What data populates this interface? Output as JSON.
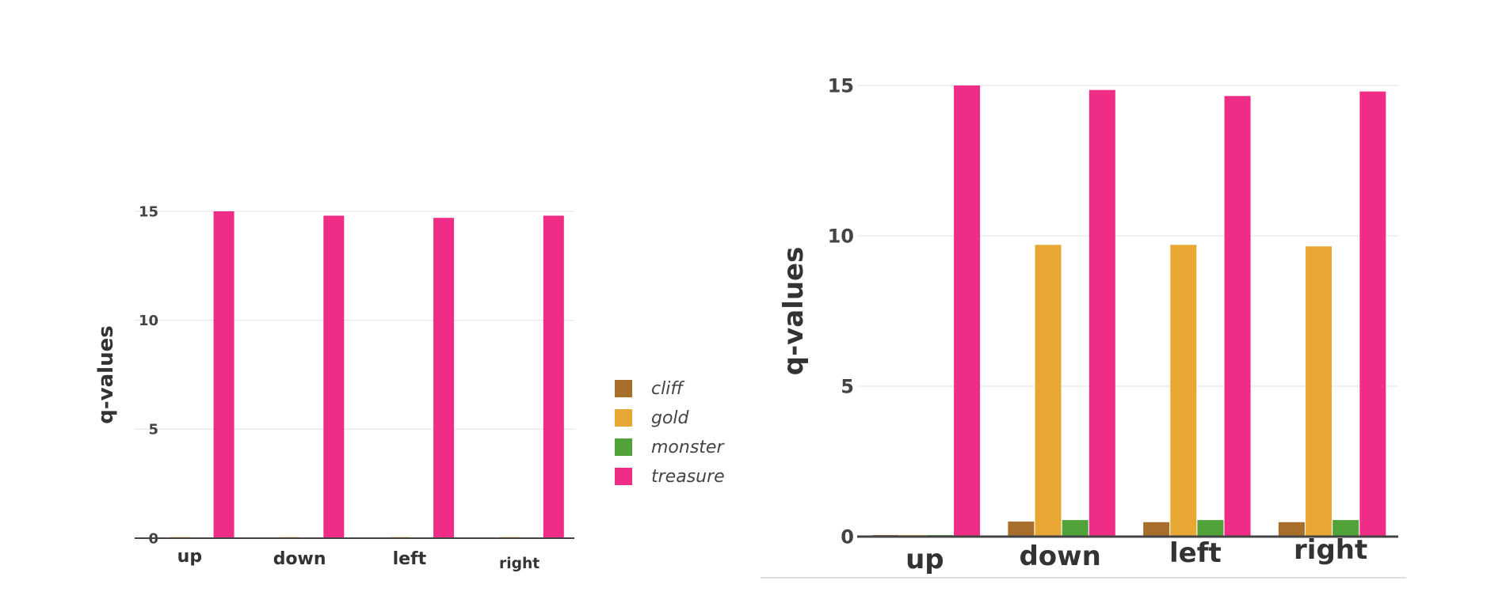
{
  "colors": {
    "cliff": "#A86E2C",
    "gold": "#E8A733",
    "monster": "#52A23A",
    "treasure": "#EF2C86",
    "grid": "#e6e6e6",
    "axis": "#444444"
  },
  "legend": [
    {
      "key": "cliff",
      "label": "cliff"
    },
    {
      "key": "gold",
      "label": "gold"
    },
    {
      "key": "monster",
      "label": "monster"
    },
    {
      "key": "treasure",
      "label": "treasure"
    }
  ],
  "chart_data": [
    {
      "type": "bar",
      "ylabel": "q-values",
      "xlabel": "",
      "categories": [
        "up",
        "down",
        "left",
        "right"
      ],
      "ylim": [
        0,
        15
      ],
      "yticks": [
        0,
        5,
        10,
        15
      ],
      "grid": true,
      "series": [
        {
          "name": "cliff",
          "key": "cliff",
          "values": [
            0,
            0,
            0,
            0
          ]
        },
        {
          "name": "gold",
          "key": "gold",
          "values": [
            0.05,
            0.05,
            0.05,
            0.05
          ]
        },
        {
          "name": "monster",
          "key": "monster",
          "values": [
            0,
            0,
            0,
            0
          ]
        },
        {
          "name": "treasure",
          "key": "treasure",
          "values": [
            15.0,
            14.8,
            14.7,
            14.8
          ]
        }
      ]
    },
    {
      "type": "bar",
      "ylabel": "q-values",
      "xlabel": "",
      "categories": [
        "up",
        "down",
        "left",
        "right"
      ],
      "ylim": [
        0,
        15
      ],
      "yticks": [
        0,
        5,
        10,
        15
      ],
      "grid": true,
      "series": [
        {
          "name": "cliff",
          "key": "cliff",
          "values": [
            0.05,
            0.5,
            0.48,
            0.48
          ]
        },
        {
          "name": "gold",
          "key": "gold",
          "values": [
            0.05,
            9.7,
            9.7,
            9.65
          ]
        },
        {
          "name": "monster",
          "key": "monster",
          "values": [
            0.05,
            0.55,
            0.55,
            0.55
          ]
        },
        {
          "name": "treasure",
          "key": "treasure",
          "values": [
            15.0,
            14.85,
            14.65,
            14.8
          ]
        }
      ]
    }
  ]
}
